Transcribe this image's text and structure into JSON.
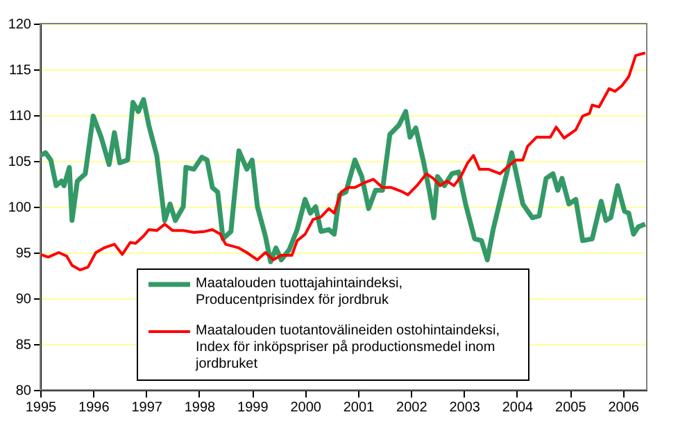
{
  "chart_data": {
    "type": "line",
    "xlim": [
      1995,
      2006.45
    ],
    "xticks": [
      1995,
      1996,
      1997,
      1998,
      1999,
      2000,
      2001,
      2002,
      2003,
      2004,
      2005,
      2006
    ],
    "ylim": [
      80,
      120
    ],
    "yticks": [
      80,
      85,
      90,
      95,
      100,
      105,
      110,
      115,
      120
    ],
    "grid": "y",
    "legend": "bottom",
    "marker": "none",
    "line_style": "solid",
    "series": [
      {
        "name": "Maatalouden tuottajahintaindeksi, Producentprisindex för jordbruk",
        "color": "#339966",
        "x": [
          1995.0,
          1995.1,
          1995.2,
          1995.3,
          1995.4,
          1995.45,
          1995.55,
          1995.6,
          1995.7,
          1995.85,
          1996.0,
          1996.15,
          1996.3,
          1996.4,
          1996.5,
          1996.65,
          1996.75,
          1996.85,
          1996.95,
          1997.05,
          1997.2,
          1997.35,
          1997.45,
          1997.55,
          1997.7,
          1997.75,
          1997.9,
          1998.05,
          1998.15,
          1998.25,
          1998.35,
          1998.45,
          1998.6,
          1998.75,
          1998.9,
          1999.0,
          1999.1,
          1999.25,
          1999.35,
          1999.45,
          1999.55,
          1999.7,
          1999.85,
          2000.0,
          2000.1,
          2000.2,
          2000.3,
          2000.45,
          2000.55,
          2000.65,
          2000.77,
          2000.94,
          2001.07,
          2001.2,
          2001.33,
          2001.46,
          2001.6,
          2001.77,
          2001.9,
          2001.98,
          2002.09,
          2002.24,
          2002.35,
          2002.43,
          2002.5,
          2002.63,
          2002.77,
          2002.9,
          2003.03,
          2003.2,
          2003.33,
          2003.44,
          2003.55,
          2003.72,
          2003.9,
          2003.98,
          2004.11,
          2004.29,
          2004.42,
          2004.55,
          2004.68,
          2004.77,
          2004.85,
          2004.98,
          2005.11,
          2005.24,
          2005.42,
          2005.59,
          2005.68,
          2005.77,
          2005.9,
          2006.03,
          2006.11,
          2006.2,
          2006.29,
          2006.42
        ],
        "values": [
          105.6,
          105.9,
          105.1,
          102.3,
          102.8,
          102.3,
          104.3,
          98.5,
          102.8,
          103.6,
          109.9,
          107.6,
          104.6,
          108.1,
          104.8,
          105.1,
          111.4,
          110.4,
          111.7,
          108.9,
          105.6,
          98.5,
          100.3,
          98.5,
          100.0,
          104.3,
          104.1,
          105.4,
          105.1,
          102.1,
          101.6,
          96.5,
          97.3,
          106.1,
          104.1,
          105.1,
          100.0,
          96.8,
          94.0,
          95.5,
          94.2,
          95.3,
          97.5,
          100.8,
          99.3,
          100.0,
          97.3,
          97.5,
          97.0,
          101.3,
          101.6,
          105.1,
          103.3,
          99.8,
          101.8,
          101.8,
          107.9,
          108.9,
          110.4,
          107.6,
          108.6,
          104.8,
          101.6,
          98.8,
          103.3,
          102.3,
          103.6,
          103.8,
          100.3,
          96.5,
          96.3,
          94.2,
          97.5,
          101.6,
          105.9,
          103.8,
          100.3,
          98.8,
          99.0,
          103.1,
          103.6,
          101.8,
          103.1,
          100.3,
          100.8,
          96.3,
          96.5,
          100.6,
          98.5,
          98.8,
          102.3,
          99.5,
          99.3,
          97.0,
          97.8,
          98.1
        ]
      },
      {
        "name": "Maatalouden tuotantovälineiden ostohintaindeksi, Index för inköpspriser på productionsmedel inom jordbruket",
        "color": "#ff0000",
        "x": [
          1995.0,
          1995.15,
          1995.35,
          1995.5,
          1995.6,
          1995.75,
          1995.9,
          1996.05,
          1996.2,
          1996.4,
          1996.55,
          1996.7,
          1996.8,
          1996.95,
          1997.05,
          1997.2,
          1997.35,
          1997.5,
          1997.7,
          1997.9,
          1998.1,
          1998.25,
          1998.4,
          1998.5,
          1998.75,
          1998.9,
          1999.1,
          1999.25,
          1999.4,
          1999.55,
          1999.75,
          1999.85,
          2000.0,
          2000.15,
          2000.3,
          2000.45,
          2000.55,
          2000.68,
          2000.81,
          2000.94,
          2001.11,
          2001.29,
          2001.46,
          2001.63,
          2001.81,
          2001.94,
          2002.11,
          2002.29,
          2002.42,
          2002.55,
          2002.68,
          2002.81,
          2002.94,
          2003.07,
          2003.18,
          2003.29,
          2003.46,
          2003.68,
          2003.85,
          2003.98,
          2004.11,
          2004.2,
          2004.37,
          2004.63,
          2004.74,
          2004.89,
          2005.11,
          2005.24,
          2005.37,
          2005.42,
          2005.55,
          2005.74,
          2005.85,
          2005.98,
          2006.11,
          2006.24,
          2006.42
        ],
        "values": [
          94.8,
          94.5,
          95.0,
          94.6,
          93.6,
          93.1,
          93.4,
          95.0,
          95.5,
          95.9,
          94.8,
          96.1,
          96.0,
          96.8,
          97.5,
          97.4,
          98.1,
          97.4,
          97.4,
          97.2,
          97.3,
          97.5,
          97.0,
          95.9,
          95.5,
          95.0,
          94.2,
          95.0,
          94.2,
          94.7,
          94.7,
          96.3,
          97.0,
          98.6,
          98.9,
          99.8,
          99.3,
          101.6,
          102.1,
          102.1,
          102.6,
          103.0,
          102.1,
          102.1,
          101.7,
          101.3,
          102.3,
          103.6,
          103.1,
          102.3,
          102.8,
          102.3,
          103.3,
          104.8,
          105.6,
          104.1,
          104.1,
          103.6,
          104.5,
          105.1,
          105.1,
          106.6,
          107.6,
          107.6,
          108.7,
          107.5,
          108.4,
          109.9,
          110.2,
          111.1,
          110.9,
          112.9,
          112.6,
          113.2,
          114.2,
          116.5,
          116.8
        ]
      }
    ]
  }
}
